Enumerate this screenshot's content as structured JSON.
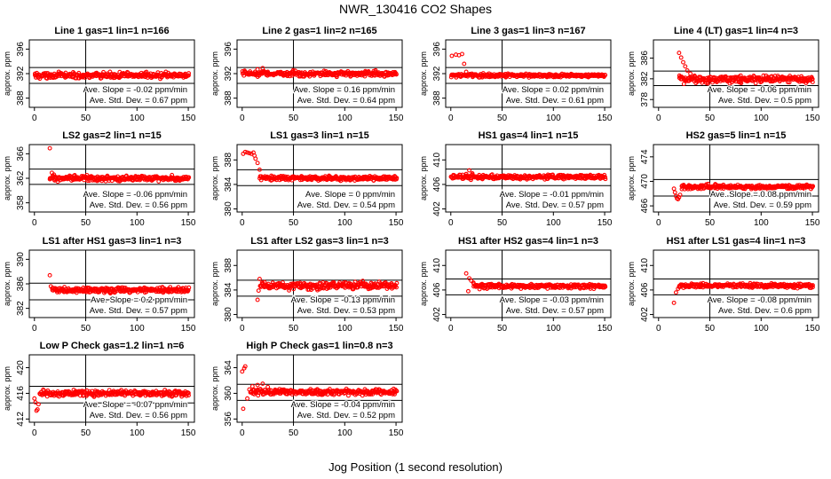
{
  "title": "NWR_130416  CO2 Shapes",
  "xlabel": "Jog Position (1 second resolution)",
  "colors": {
    "points": "#ff0000",
    "axes": "#000000"
  },
  "chart_data": [
    {
      "type": "scatter",
      "title": "Line 1 gas=1 lin=1 n=166",
      "ylabel": "approx. ppm",
      "ylim": [
        386.5,
        397.5
      ],
      "yticks": [
        388,
        392,
        396
      ],
      "xlim": [
        -5,
        156
      ],
      "xticks": [
        0,
        50,
        100,
        150
      ],
      "hlines": [
        393.0,
        390.4
      ],
      "vline": 50,
      "slope_text": "Ave. Slope = -0.02 ppm/min",
      "std_text": "Ave. Std. Dev. = 0.67 ppm",
      "series": {
        "x_start": 0,
        "x_end": 150,
        "base": 391.7,
        "noise": 0.33,
        "transient": []
      }
    },
    {
      "type": "scatter",
      "title": "Line 2 gas=1 lin=2 n=165",
      "ylabel": "approx. ppm",
      "ylim": [
        386.5,
        397.5
      ],
      "yticks": [
        388,
        392,
        396
      ],
      "xlim": [
        -5,
        156
      ],
      "xticks": [
        0,
        50,
        100,
        150
      ],
      "hlines": [
        393.0,
        390.4
      ],
      "vline": 50,
      "slope_text": "Ave. Slope = 0.16 ppm/min",
      "std_text": "Ave. Std. Dev. = 0.64 ppm",
      "series": {
        "x_start": 0,
        "x_end": 150,
        "base": 392.0,
        "noise": 0.3,
        "transient": [
          [
            15,
            392.7
          ],
          [
            20,
            392.9
          ],
          [
            25,
            392.3
          ]
        ]
      }
    },
    {
      "type": "scatter",
      "title": "Line 3 gas=1 lin=3 n=167",
      "ylabel": "approx. ppm",
      "ylim": [
        386.5,
        397.5
      ],
      "yticks": [
        388,
        392,
        396
      ],
      "xlim": [
        -5,
        156
      ],
      "xticks": [
        0,
        50,
        100,
        150
      ],
      "hlines": [
        393.0,
        390.4
      ],
      "vline": 50,
      "slope_text": "Ave. Slope = 0.02 ppm/min",
      "std_text": "Ave. Std. Dev. = 0.61 ppm",
      "series": {
        "x_start": 0,
        "x_end": 150,
        "base": 391.7,
        "noise": 0.2,
        "transient": [
          [
            1,
            394.9
          ],
          [
            5,
            395.1
          ],
          [
            8,
            395.0
          ],
          [
            11,
            395.2
          ],
          [
            13,
            393.6
          ],
          [
            15,
            392.3
          ]
        ]
      }
    },
    {
      "type": "scatter",
      "title": "Line 4 (LT) gas=1 lin=4 n=3",
      "ylabel": "approx. ppm",
      "ylim": [
        376.5,
        389.5
      ],
      "yticks": [
        378,
        382,
        386
      ],
      "xlim": [
        -5,
        156
      ],
      "xticks": [
        0,
        50,
        100,
        150
      ],
      "hlines": [
        383.5,
        380.7
      ],
      "vline": 50,
      "slope_text": "Ave. Slope = -0.06 ppm/min",
      "std_text": "Ave. Std. Dev. = 0.5 ppm",
      "series": {
        "x_start": 20,
        "x_end": 150,
        "base": 381.9,
        "noise": 0.5,
        "transient": [
          [
            20,
            387.0
          ],
          [
            22,
            386.1
          ],
          [
            24,
            385.2
          ],
          [
            26,
            384.4
          ],
          [
            28,
            383.6
          ],
          [
            31,
            383.0
          ],
          [
            35,
            382.6
          ]
        ]
      }
    },
    {
      "type": "scatter",
      "title": "LS2 gas=2 lin=1 n=15",
      "ylabel": "approx. ppm",
      "ylim": [
        356.5,
        367.5
      ],
      "yticks": [
        358,
        362,
        366
      ],
      "xlim": [
        -5,
        156
      ],
      "xticks": [
        0,
        50,
        100,
        150
      ],
      "hlines": [
        363.5,
        361.0
      ],
      "vline": 50,
      "slope_text": "Ave. Slope = -0.06 ppm/min",
      "std_text": "Ave. Std. Dev. = 0.56 ppm",
      "series": {
        "x_start": 15,
        "x_end": 150,
        "base": 362.0,
        "noise": 0.3,
        "transient": [
          [
            15,
            366.9
          ],
          [
            17,
            362.9
          ],
          [
            19,
            362.6
          ]
        ]
      }
    },
    {
      "type": "scatter",
      "title": "LS1 gas=3 lin=1 n=15",
      "ylabel": "approx. ppm",
      "ylim": [
        379.5,
        390.5
      ],
      "yticks": [
        380,
        384,
        388
      ],
      "xlim": [
        -5,
        156
      ],
      "xticks": [
        0,
        50,
        100,
        150
      ],
      "hlines": [
        386.4,
        383.8
      ],
      "vline": 50,
      "slope_text": "Ave. Slope = 0 ppm/min",
      "std_text": "Ave. Std. Dev. = 0.54 ppm",
      "series": {
        "x_start": 17,
        "x_end": 150,
        "base": 385.0,
        "noise": 0.25,
        "transient": [
          [
            1,
            389.0
          ],
          [
            3,
            389.3
          ],
          [
            5,
            389.2
          ],
          [
            7,
            389.1
          ],
          [
            9,
            389.0
          ],
          [
            11,
            389.2
          ],
          [
            12,
            388.7
          ],
          [
            13,
            388.2
          ],
          [
            15,
            387.5
          ],
          [
            17,
            386.4
          ]
        ]
      }
    },
    {
      "type": "scatter",
      "title": "HS1 gas=4 lin=1 n=15",
      "ylabel": "approx. ppm",
      "ylim": [
        401.5,
        412.5
      ],
      "yticks": [
        402,
        406,
        410
      ],
      "xlim": [
        -5,
        156
      ],
      "xticks": [
        0,
        50,
        100,
        150
      ],
      "hlines": [
        408.5,
        405.8
      ],
      "vline": 50,
      "slope_text": "Ave. Slope = -0.01 ppm/min",
      "std_text": "Ave. Std. Dev. = 0.57 ppm",
      "series": {
        "x_start": 0,
        "x_end": 150,
        "base": 407.2,
        "noise": 0.25,
        "transient": [
          [
            15,
            407.7
          ],
          [
            18,
            408.3
          ],
          [
            21,
            407.8
          ]
        ]
      }
    },
    {
      "type": "scatter",
      "title": "HS2 gas=5 lin=1 n=15",
      "ylabel": "approx. ppm",
      "ylim": [
        465.0,
        476.0
      ],
      "yticks": [
        466,
        470,
        474
      ],
      "xlim": [
        -5,
        156
      ],
      "xticks": [
        0,
        50,
        100,
        150
      ],
      "hlines": [
        470.3,
        467.6
      ],
      "vline": 50,
      "slope_text": "Ave. Slope = 0.08 ppm/min",
      "std_text": "Ave. Std. Dev. = 0.59 ppm",
      "series": {
        "x_start": 22,
        "x_end": 150,
        "base": 469.1,
        "noise": 0.25,
        "transient": [
          [
            15,
            468.8
          ],
          [
            16,
            468.2
          ],
          [
            17,
            467.6
          ],
          [
            18,
            467.2
          ],
          [
            19,
            467.1
          ],
          [
            20,
            467.4
          ],
          [
            21,
            467.8
          ]
        ]
      }
    },
    {
      "type": "scatter",
      "title": "LS1 after HS1 gas=3 lin=1 n=3",
      "ylabel": "approx. ppm",
      "ylim": [
        380.5,
        391.5
      ],
      "yticks": [
        382,
        386,
        390
      ],
      "xlim": [
        -5,
        156
      ],
      "xticks": [
        0,
        50,
        100,
        150
      ],
      "hlines": [
        386.1,
        383.4
      ],
      "vline": 50,
      "slope_text": "Ave. Slope = 0.2 ppm/min",
      "std_text": "Ave. Std. Dev. = 0.57 ppm",
      "series": {
        "x_start": 17,
        "x_end": 150,
        "base": 385.0,
        "noise": 0.3,
        "transient": [
          [
            15,
            387.4
          ],
          [
            16,
            385.6
          ]
        ]
      }
    },
    {
      "type": "scatter",
      "title": "LS1 after LS2 gas=3 lin=1 n=3",
      "ylabel": "approx. ppm",
      "ylim": [
        379.5,
        390.5
      ],
      "yticks": [
        380,
        384,
        388
      ],
      "xlim": [
        -5,
        156
      ],
      "xticks": [
        0,
        50,
        100,
        150
      ],
      "hlines": [
        385.6,
        383.0
      ],
      "vline": 50,
      "slope_text": "Ave. Slope = -0.13 ppm/min",
      "std_text": "Ave. Std. Dev. = 0.53 ppm",
      "series": {
        "x_start": 17,
        "x_end": 150,
        "base": 384.7,
        "noise": 0.4,
        "transient": [
          [
            15,
            382.4
          ],
          [
            16,
            383.9
          ],
          [
            17,
            385.8
          ]
        ]
      }
    },
    {
      "type": "scatter",
      "title": "HS1 after HS2 gas=4 lin=1 n=3",
      "ylabel": "approx. ppm",
      "ylim": [
        401.5,
        412.5
      ],
      "yticks": [
        402,
        406,
        410
      ],
      "xlim": [
        -5,
        156
      ],
      "xticks": [
        0,
        50,
        100,
        150
      ],
      "hlines": [
        407.8,
        405.2
      ],
      "vline": 50,
      "slope_text": "Ave. Slope = -0.03 ppm/min",
      "std_text": "Ave. Std. Dev. = 0.57 ppm",
      "series": {
        "x_start": 22,
        "x_end": 150,
        "base": 406.6,
        "noise": 0.25,
        "transient": [
          [
            15,
            408.7
          ],
          [
            17,
            405.8
          ],
          [
            18,
            407.9
          ],
          [
            20,
            407.5
          ],
          [
            22,
            407.2
          ]
        ]
      }
    },
    {
      "type": "scatter",
      "title": "HS1 after LS1 gas=4 lin=1 n=3",
      "ylabel": "approx. ppm",
      "ylim": [
        401.5,
        412.5
      ],
      "yticks": [
        402,
        406,
        410
      ],
      "xlim": [
        -5,
        156
      ],
      "xticks": [
        0,
        50,
        100,
        150
      ],
      "hlines": [
        407.8,
        405.2
      ],
      "vline": 50,
      "slope_text": "Ave. Slope = -0.08 ppm/min",
      "std_text": "Ave. Std. Dev. = 0.6 ppm",
      "series": {
        "x_start": 20,
        "x_end": 150,
        "base": 406.7,
        "noise": 0.25,
        "transient": [
          [
            15,
            403.9
          ],
          [
            17,
            405.6
          ],
          [
            19,
            406.2
          ]
        ]
      }
    },
    {
      "type": "scatter",
      "title": "Low P Check gas=1.2 lin=1 n=6",
      "ylabel": "approx. ppm",
      "ylim": [
        411.5,
        422.0
      ],
      "yticks": [
        412,
        416,
        420
      ],
      "xlim": [
        -5,
        156
      ],
      "xticks": [
        0,
        50,
        100,
        150
      ],
      "hlines": [
        417.1,
        414.5
      ],
      "vline": 50,
      "slope_text": "Ave. Slope = -0.07 ppm/min",
      "std_text": "Ave. Std. Dev. = 0.56 ppm",
      "series": {
        "x_start": 5,
        "x_end": 150,
        "base": 416.0,
        "noise": 0.3,
        "transient": [
          [
            0,
            415.2
          ],
          [
            1,
            414.6
          ],
          [
            2,
            413.3
          ],
          [
            3,
            413.5
          ],
          [
            4,
            414.3
          ]
        ]
      }
    },
    {
      "type": "scatter",
      "title": "High P Check gas=1 lin=0.8 n=3",
      "ylabel": "approx. ppm",
      "ylim": [
        355.5,
        366.0
      ],
      "yticks": [
        356,
        360,
        364
      ],
      "xlim": [
        -5,
        156
      ],
      "xticks": [
        0,
        50,
        100,
        150
      ],
      "hlines": [
        361.4,
        358.9
      ],
      "vline": 50,
      "slope_text": "Ave. Slope = -0.04 ppm/min",
      "std_text": "Ave. Std. Dev. = 0.52 ppm",
      "series": {
        "x_start": 8,
        "x_end": 150,
        "base": 360.2,
        "noise": 0.3,
        "transient": [
          [
            0,
            363.4
          ],
          [
            1,
            357.6
          ],
          [
            2,
            363.9
          ],
          [
            3,
            364.2
          ],
          [
            5,
            359.2
          ],
          [
            7,
            360.6
          ],
          [
            10,
            361.1
          ],
          [
            15,
            361.3
          ],
          [
            20,
            361.5
          ],
          [
            25,
            361.0
          ]
        ]
      }
    }
  ]
}
